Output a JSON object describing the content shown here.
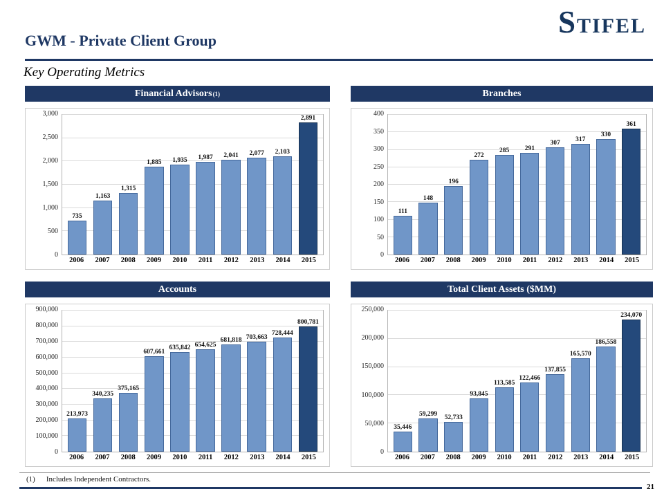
{
  "slide": {
    "title": "GWM - Private Client Group",
    "subtitle": "Key Operating Metrics",
    "logo": "STIFEL",
    "footnote_marker": "(1)",
    "footnote_text": "Includes Independent Contractors.",
    "page_number": "21"
  },
  "colors": {
    "navy": "#1F3864",
    "bar_fill": "#7096C8",
    "bar_border": "#44689B",
    "bar_highlight_fill": "#24497B",
    "bar_highlight_border": "#16304F",
    "gridline": "#D9D9D9"
  },
  "chart_data": [
    {
      "type": "bar",
      "title": "Financial Advisors",
      "title_superscript": "(1)",
      "categories": [
        "2006",
        "2007",
        "2008",
        "2009",
        "2010",
        "2011",
        "2012",
        "2013",
        "2014",
        "2015"
      ],
      "values": [
        735,
        1163,
        1315,
        1885,
        1935,
        1987,
        2041,
        2077,
        2103,
        2891
      ],
      "labels": [
        "735",
        "1,163",
        "1,315",
        "1,885",
        "1,935",
        "1,987",
        "2,041",
        "2,077",
        "2,103",
        "2,891"
      ],
      "ylim": [
        0,
        3000
      ],
      "ytick_step": 500,
      "yticks": [
        "0",
        "500",
        "1,000",
        "1,500",
        "2,000",
        "2,500",
        "3,000"
      ],
      "xlabel": "",
      "ylabel": "",
      "grid": true,
      "legend": false,
      "highlight_last": true
    },
    {
      "type": "bar",
      "title": "Branches",
      "categories": [
        "2006",
        "2007",
        "2008",
        "2009",
        "2010",
        "2011",
        "2012",
        "2013",
        "2014",
        "2015"
      ],
      "values": [
        111,
        148,
        196,
        272,
        285,
        291,
        307,
        317,
        330,
        361
      ],
      "labels": [
        "111",
        "148",
        "196",
        "272",
        "285",
        "291",
        "307",
        "317",
        "330",
        "361"
      ],
      "ylim": [
        0,
        400
      ],
      "ytick_step": 50,
      "yticks": [
        "0",
        "50",
        "100",
        "150",
        "200",
        "250",
        "300",
        "350",
        "400"
      ],
      "xlabel": "",
      "ylabel": "",
      "grid": true,
      "legend": false,
      "highlight_last": true
    },
    {
      "type": "bar",
      "title": "Accounts",
      "categories": [
        "2006",
        "2007",
        "2008",
        "2009",
        "2010",
        "2011",
        "2012",
        "2013",
        "2014",
        "2015"
      ],
      "values": [
        213973,
        340235,
        375165,
        607661,
        635842,
        654625,
        681818,
        703663,
        728444,
        800781
      ],
      "labels": [
        "213,973",
        "340,235",
        "375,165",
        "607,661",
        "635,842",
        "654,625",
        "681,818",
        "703,663",
        "728,444",
        "800,781"
      ],
      "ylim": [
        0,
        900000
      ],
      "ytick_step": 100000,
      "yticks": [
        "0",
        "100,000",
        "200,000",
        "300,000",
        "400,000",
        "500,000",
        "600,000",
        "700,000",
        "800,000",
        "900,000"
      ],
      "xlabel": "",
      "ylabel": "",
      "grid": true,
      "legend": false,
      "highlight_last": true
    },
    {
      "type": "bar",
      "title": "Total Client Assets ($MM)",
      "categories": [
        "2006",
        "2007",
        "2008",
        "2009",
        "2010",
        "2011",
        "2012",
        "2013",
        "2014",
        "2015"
      ],
      "values": [
        35446,
        59299,
        52733,
        93845,
        113585,
        122466,
        137855,
        165570,
        186558,
        234070
      ],
      "labels": [
        "35,446",
        "59,299",
        "52,733",
        "93,845",
        "113,585",
        "122,466",
        "137,855",
        "165,570",
        "186,558",
        "234,070"
      ],
      "ylim": [
        0,
        250000
      ],
      "ytick_step": 50000,
      "yticks": [
        "0",
        "50,000",
        "100,000",
        "150,000",
        "200,000",
        "250,000"
      ],
      "xlabel": "",
      "ylabel": "",
      "grid": true,
      "legend": false,
      "highlight_last": true
    }
  ]
}
